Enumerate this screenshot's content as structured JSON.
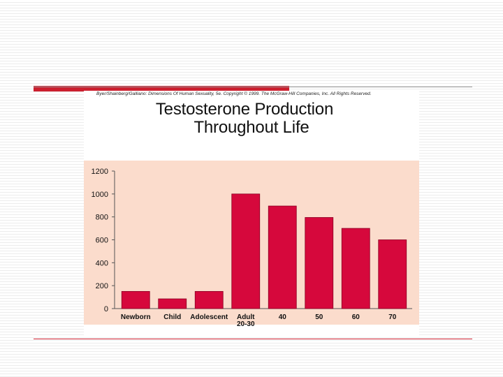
{
  "slide": {
    "credit": "Byer/Shainberg/Galliano: Dimensions Of Human Sexuality, 5e. Copyright © 1999. The McGraw-Hill Companies, Inc. All Rights Reserved."
  },
  "colors": {
    "accent_red": "#cc1f2f",
    "bar": "#d6083c",
    "plot_bg": "#fbdccc"
  },
  "chart_data": {
    "type": "bar",
    "title": [
      "Testosterone Production",
      "Throughout Life"
    ],
    "xlabel": "",
    "ylabel": "",
    "ylim": [
      0,
      1200
    ],
    "yticks": [
      0,
      200,
      400,
      600,
      800,
      1000,
      1200
    ],
    "categories": [
      "Newborn",
      "Child",
      "Adolescent",
      "Adult 20-30",
      "40",
      "50",
      "60",
      "70"
    ],
    "category_lines": [
      [
        "Newborn"
      ],
      [
        "Child"
      ],
      [
        "Adolescent"
      ],
      [
        "Adult",
        "20-30"
      ],
      [
        "40"
      ],
      [
        "50"
      ],
      [
        "60"
      ],
      [
        "70"
      ]
    ],
    "values": [
      150,
      85,
      150,
      1000,
      895,
      795,
      700,
      600
    ],
    "grid": false,
    "legend": "none"
  }
}
